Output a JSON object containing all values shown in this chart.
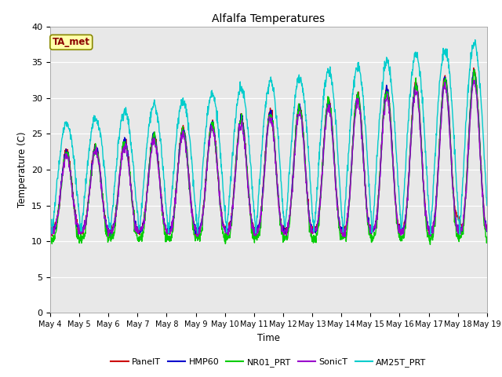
{
  "title": "Alfalfa Temperatures",
  "xlabel": "Time",
  "ylabel": "Temperature (C)",
  "ylim": [
    0,
    40
  ],
  "yticks": [
    0,
    5,
    10,
    15,
    20,
    25,
    30,
    35,
    40
  ],
  "annotation": "TA_met",
  "series_names": [
    "PanelT",
    "HMP60",
    "NR01_PRT",
    "SonicT",
    "AM25T_PRT"
  ],
  "series_colors": [
    "#cc0000",
    "#0000cc",
    "#00cc00",
    "#9900cc",
    "#00cccc"
  ],
  "background_color": "#e8e8e8",
  "n_days": 15,
  "start_day": 4,
  "pts_per_day": 96
}
